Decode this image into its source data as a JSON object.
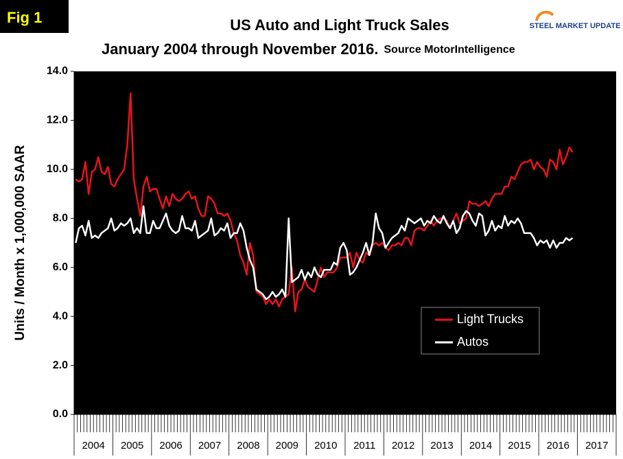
{
  "chart_data": {
    "type": "line",
    "fig_label": "Fig 1",
    "title": "US Auto and Light Truck Sales",
    "subtitle": "January 2004 through November 2016.",
    "source": "Source MotorIntelligence",
    "logo": "STEEL MARKET UPDATE",
    "y_label": "Units / Month x 1,000,000 SAAR",
    "years": [
      "2004",
      "2005",
      "2006",
      "2007",
      "2008",
      "2009",
      "2010",
      "2011",
      "2012",
      "2013",
      "2014",
      "2015",
      "2016",
      "2017"
    ],
    "ylim": [
      0,
      14
    ],
    "yticks": [
      {
        "value": 0,
        "label": "0.0"
      },
      {
        "value": 2,
        "label": "2.0"
      },
      {
        "value": 4,
        "label": "4.0"
      },
      {
        "value": 6,
        "label": "6.0"
      },
      {
        "value": 8,
        "label": "8.0"
      },
      {
        "value": 10,
        "label": "10.0"
      },
      {
        "value": 12,
        "label": "12.0"
      },
      {
        "value": 14,
        "label": "14.0"
      }
    ],
    "legend": "lower right",
    "series": [
      {
        "name": "Light Trucks",
        "color": "#e8141b",
        "values": [
          9.6,
          9.5,
          9.6,
          10.3,
          9.0,
          9.9,
          10.0,
          10.5,
          9.9,
          9.8,
          10.1,
          9.4,
          9.3,
          9.6,
          9.8,
          10.0,
          11.0,
          13.1,
          9.6,
          8.8,
          8.1,
          9.3,
          9.7,
          9.1,
          9.2,
          9.2,
          8.8,
          8.4,
          8.9,
          8.5,
          9.0,
          8.8,
          8.7,
          8.8,
          9.0,
          9.1,
          8.8,
          8.9,
          8.4,
          8.1,
          8.1,
          8.9,
          8.8,
          8.6,
          8.2,
          8.2,
          8.1,
          8.2,
          7.9,
          7.4,
          7.1,
          6.5,
          6.2,
          5.7,
          7.0,
          6.5,
          5.0,
          4.9,
          4.8,
          4.5,
          4.7,
          4.5,
          4.7,
          4.4,
          4.7,
          4.8,
          4.9,
          6.0,
          4.2,
          5.0,
          5.1,
          5.5,
          5.2,
          5.1,
          5.0,
          5.5,
          6.0,
          5.6,
          5.8,
          5.8,
          5.8,
          6.0,
          6.4,
          6.4,
          6.4,
          6.6,
          6.0,
          6.6,
          6.3,
          6.2,
          6.6,
          6.5,
          6.9,
          7.0,
          6.9,
          7.0,
          6.8,
          6.7,
          6.9,
          6.9,
          7.0,
          6.9,
          7.2,
          7.2,
          6.9,
          7.5,
          7.6,
          7.6,
          7.5,
          7.7,
          7.9,
          7.7,
          7.9,
          8.0,
          8.0,
          7.9,
          7.6,
          7.9,
          8.2,
          7.8,
          7.9,
          8.0,
          8.7,
          8.6,
          8.6,
          8.5,
          8.6,
          8.7,
          8.5,
          8.8,
          9.0,
          9.0,
          9.0,
          9.3,
          9.3,
          9.7,
          9.6,
          9.9,
          10.2,
          10.3,
          10.3,
          10.4,
          10.0,
          10.3,
          10.1,
          10.0,
          9.7,
          10.4,
          10.3,
          10.0,
          10.8,
          10.2,
          10.5,
          10.9,
          10.7
        ]
      },
      {
        "name": "Autos",
        "color": "#ffffff",
        "values": [
          7.0,
          7.6,
          7.7,
          7.3,
          7.9,
          7.2,
          7.3,
          7.2,
          7.4,
          7.5,
          7.6,
          8.0,
          7.5,
          7.6,
          7.8,
          7.7,
          7.8,
          8.0,
          7.4,
          7.6,
          7.4,
          8.5,
          7.4,
          7.4,
          7.9,
          7.6,
          7.6,
          7.9,
          8.2,
          7.7,
          7.5,
          7.4,
          7.5,
          8.1,
          7.6,
          7.6,
          7.5,
          7.9,
          7.2,
          7.3,
          7.4,
          7.5,
          8.0,
          7.3,
          7.4,
          7.6,
          7.5,
          7.8,
          7.2,
          7.4,
          7.4,
          7.8,
          7.5,
          6.8,
          6.3,
          6.0,
          5.1,
          5.0,
          4.9,
          4.7,
          4.8,
          5.0,
          4.8,
          4.9,
          5.1,
          4.8,
          8.0,
          5.4,
          5.5,
          5.6,
          5.9,
          5.5,
          5.8,
          5.6,
          6.0,
          5.7,
          5.6,
          5.9,
          5.9,
          5.9,
          6.2,
          6.1,
          6.8,
          7.0,
          6.7,
          5.7,
          5.8,
          6.0,
          6.3,
          6.6,
          7.0,
          6.5,
          7.0,
          8.2,
          7.6,
          7.4,
          6.8,
          7.0,
          7.2,
          7.3,
          7.4,
          7.7,
          7.5,
          8.0,
          7.9,
          7.8,
          7.9,
          8.0,
          7.7,
          7.9,
          7.8,
          8.1,
          7.9,
          7.8,
          8.1,
          7.8,
          7.6,
          7.9,
          7.4,
          7.6,
          8.1,
          8.3,
          8.2,
          7.9,
          7.7,
          8.2,
          8.1,
          7.3,
          7.5,
          7.9,
          7.5,
          7.7,
          7.6,
          8.1,
          7.7,
          7.9,
          7.8,
          8.0,
          7.8,
          7.4,
          7.4,
          7.4,
          7.2,
          6.9,
          7.1,
          7.0,
          7.1,
          6.8,
          7.1,
          6.8,
          7.0,
          7.0,
          7.2,
          7.1,
          7.2
        ]
      }
    ]
  }
}
